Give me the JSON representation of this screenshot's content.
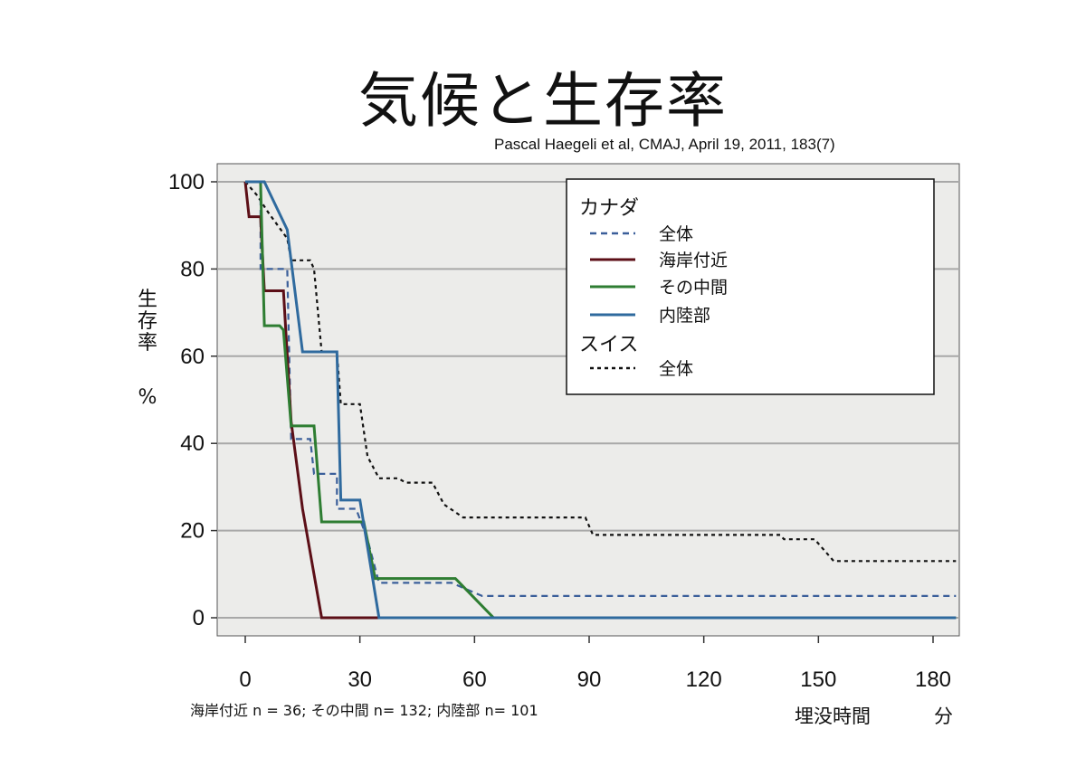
{
  "title": "気候と生存率",
  "citation": "Pascal Haegeli et al, CMAJ, April 19, 2011, 183(7)",
  "footnote": "海岸付近 n = 36; その中間 n= 132; 内陸部 n= 101",
  "x_unit_label": "埋没時間",
  "x_unit": "分",
  "y_label_chars": [
    "生",
    "存",
    "率"
  ],
  "y_unit": "%",
  "chart_data": {
    "type": "line",
    "step": true,
    "xlim": [
      -5,
      186
    ],
    "ylim": [
      -4,
      104
    ],
    "x_ticks": [
      0,
      30,
      60,
      90,
      120,
      150,
      180
    ],
    "y_ticks": [
      0,
      20,
      40,
      60,
      80,
      100
    ],
    "grid": true,
    "legend_position": "top-right",
    "legend_groups": [
      {
        "heading": "カナダ",
        "entries": [
          "全体",
          "海岸付近",
          "その中間",
          "内陸部"
        ]
      },
      {
        "heading": "スイス",
        "entries": [
          "全体"
        ]
      }
    ],
    "series": [
      {
        "name": "全体",
        "group": "カナダ",
        "color": "#3b5f9a",
        "dash": "dashed",
        "points": [
          [
            0,
            100
          ],
          [
            4,
            100
          ],
          [
            4,
            80
          ],
          [
            11,
            80
          ],
          [
            12,
            41
          ],
          [
            17,
            41
          ],
          [
            18,
            33
          ],
          [
            24,
            33
          ],
          [
            24,
            25
          ],
          [
            29,
            25
          ],
          [
            32,
            18
          ],
          [
            35,
            8
          ],
          [
            54,
            8
          ],
          [
            62,
            5
          ],
          [
            186,
            5
          ]
        ]
      },
      {
        "name": "海岸付近",
        "group": "カナダ",
        "color": "#5c0f17",
        "dash": "solid",
        "points": [
          [
            0,
            100
          ],
          [
            1,
            92
          ],
          [
            4,
            92
          ],
          [
            5,
            75
          ],
          [
            10,
            75
          ],
          [
            12,
            45
          ],
          [
            15,
            25
          ],
          [
            20,
            0
          ],
          [
            35,
            0
          ]
        ]
      },
      {
        "name": "その中間",
        "group": "カナダ",
        "color": "#2e7d32",
        "dash": "solid",
        "points": [
          [
            0,
            100
          ],
          [
            4,
            100
          ],
          [
            5,
            67
          ],
          [
            9,
            67
          ],
          [
            10,
            66
          ],
          [
            12,
            44
          ],
          [
            18,
            44
          ],
          [
            20,
            22
          ],
          [
            31,
            22
          ],
          [
            34,
            9
          ],
          [
            55,
            9
          ],
          [
            65,
            0
          ],
          [
            186,
            0
          ]
        ]
      },
      {
        "name": "内陸部",
        "group": "カナダ",
        "color": "#2f6a9e",
        "dash": "solid",
        "points": [
          [
            0,
            100
          ],
          [
            5,
            100
          ],
          [
            11,
            89
          ],
          [
            15,
            61
          ],
          [
            24,
            61
          ],
          [
            25,
            27
          ],
          [
            30,
            27
          ],
          [
            35,
            0
          ],
          [
            186,
            0
          ]
        ]
      },
      {
        "name": "全体",
        "group": "スイス",
        "color": "#111111",
        "dash": "dotted",
        "points": [
          [
            0,
            100
          ],
          [
            3,
            97
          ],
          [
            6,
            93
          ],
          [
            11,
            87
          ],
          [
            12,
            82
          ],
          [
            17,
            82
          ],
          [
            18,
            80
          ],
          [
            20,
            61
          ],
          [
            24,
            61
          ],
          [
            25,
            49
          ],
          [
            30,
            49
          ],
          [
            32,
            37
          ],
          [
            35,
            32
          ],
          [
            40,
            32
          ],
          [
            42,
            31
          ],
          [
            49,
            31
          ],
          [
            52,
            26
          ],
          [
            57,
            23
          ],
          [
            89,
            23
          ],
          [
            91,
            19
          ],
          [
            140,
            19
          ],
          [
            141,
            18
          ],
          [
            149,
            18
          ],
          [
            154,
            13
          ],
          [
            186,
            13
          ]
        ]
      }
    ]
  }
}
